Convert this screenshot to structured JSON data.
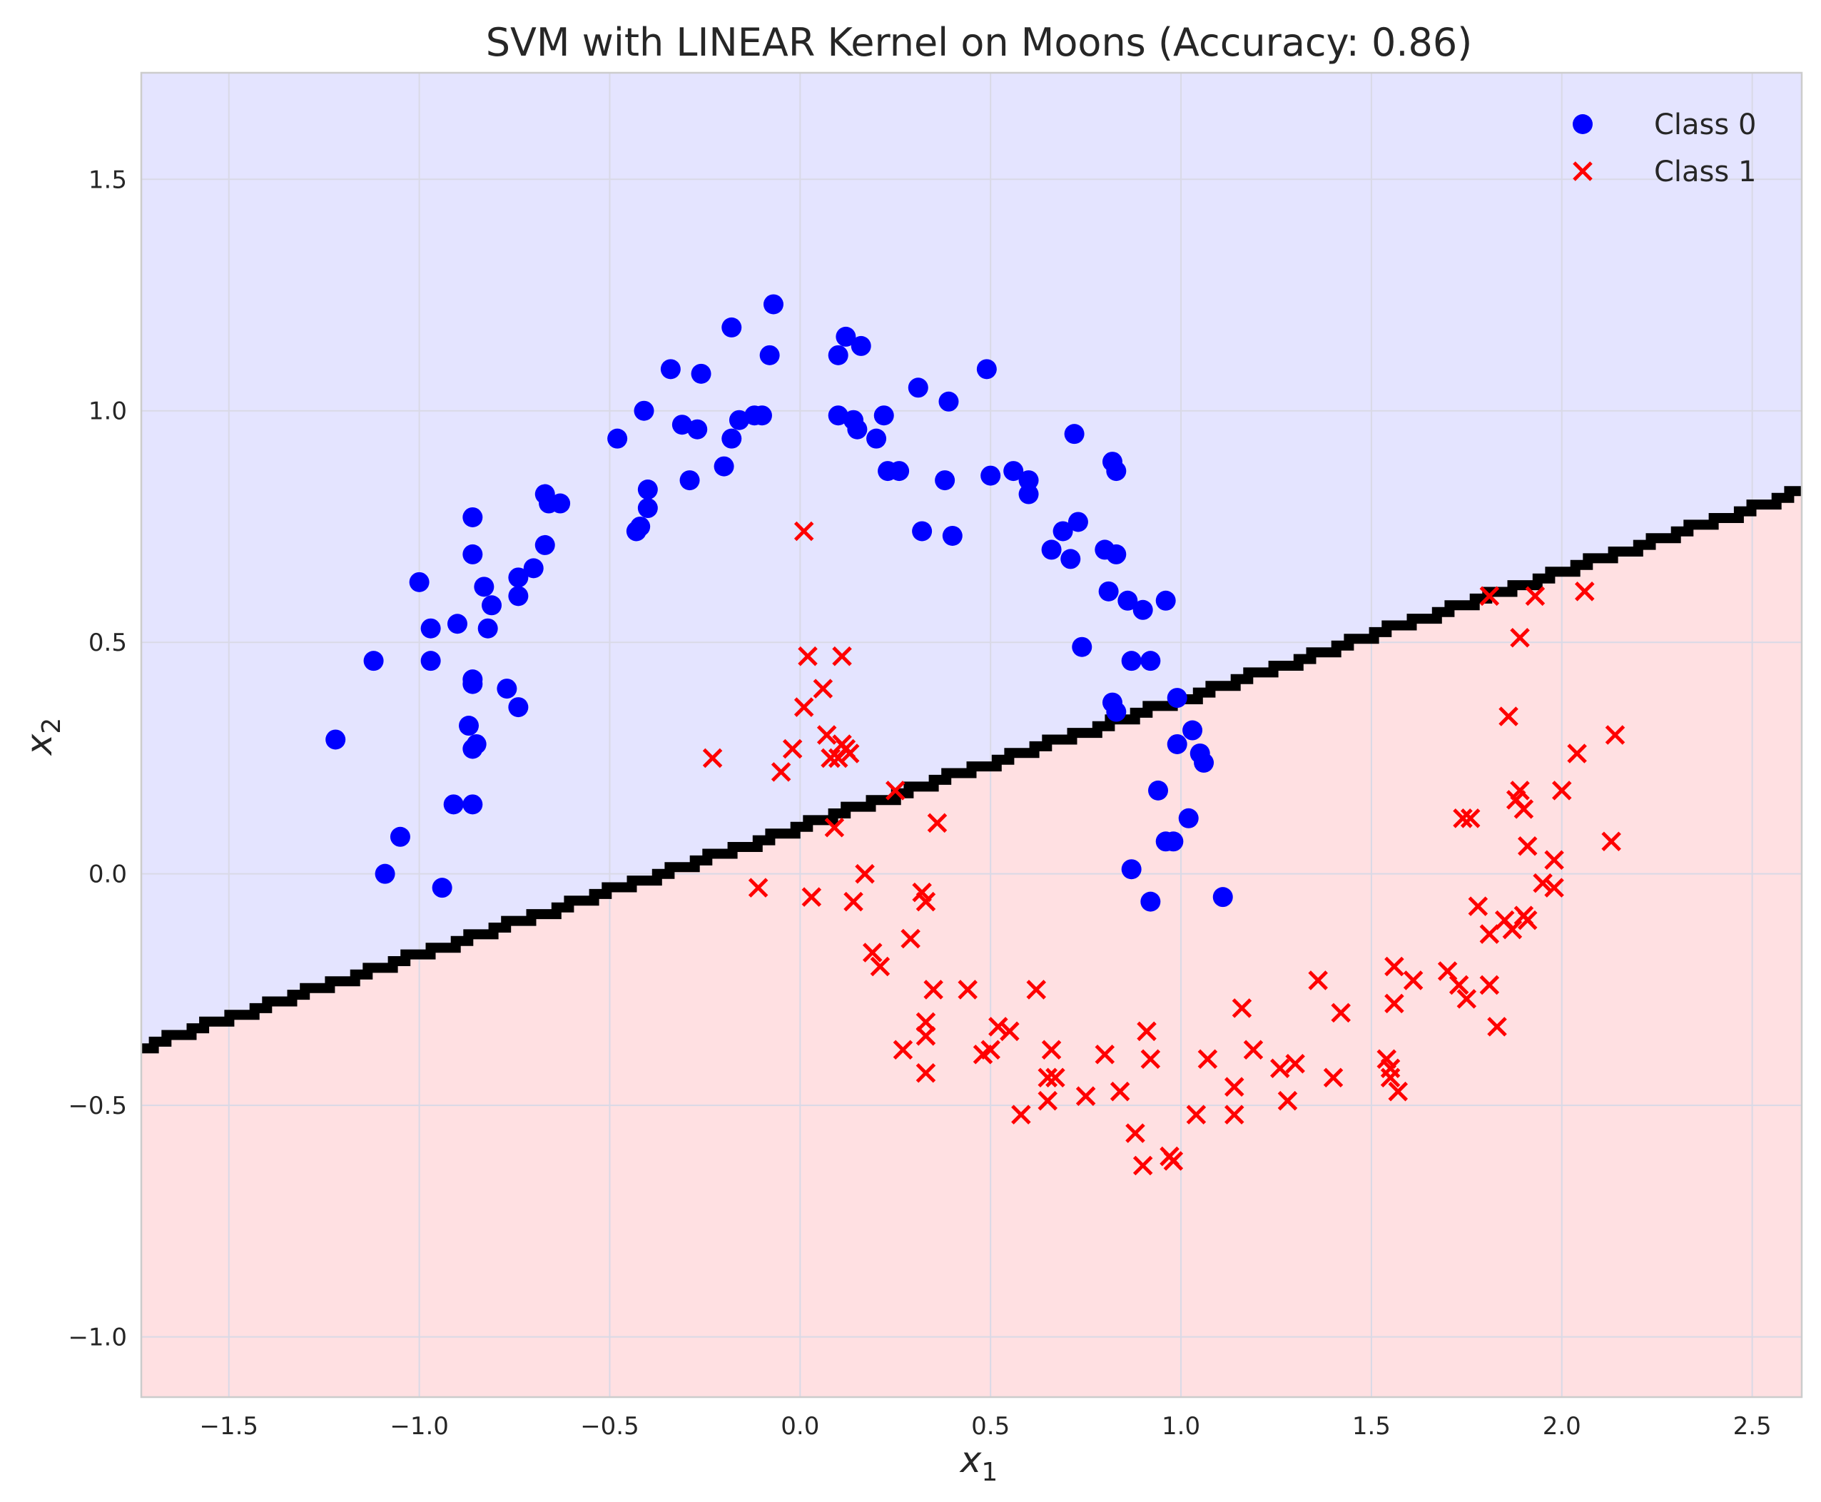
{
  "chart_data": {
    "type": "scatter",
    "title": "SVM with LINEAR Kernel on Moons (Accuracy: 0.86)",
    "xlabel_base": "x",
    "xlabel_sub": "1",
    "ylabel_base": "x",
    "ylabel_sub": "2",
    "xlim": [
      -1.73,
      2.63
    ],
    "ylim": [
      -1.13,
      1.73
    ],
    "x_ticks": [
      -1.5,
      -1.0,
      -0.5,
      0.0,
      0.5,
      1.0,
      1.5,
      2.0,
      2.5
    ],
    "x_tick_labels": [
      "−1.5",
      "−1.0",
      "−0.5",
      "0.0",
      "0.5",
      "1.0",
      "1.5",
      "2.0",
      "2.5"
    ],
    "y_ticks": [
      -1.0,
      -0.5,
      0.0,
      0.5,
      1.0,
      1.5
    ],
    "y_tick_labels": [
      "−1.0",
      "−0.5",
      "0.0",
      "0.5",
      "1.0",
      "1.5"
    ],
    "grid": true,
    "legend_position": "top-right",
    "decision_boundary": {
      "slope": 0.2755,
      "intercept": 0.105
    },
    "region_colors": {
      "class0": "#e4e4ff",
      "class1": "#ffe0e2"
    },
    "series": [
      {
        "name": "Class 0",
        "marker": "circle",
        "color": "#0000ff",
        "points": [
          [
            -1.22,
            0.29
          ],
          [
            -1.12,
            0.46
          ],
          [
            -1.09,
            0.0
          ],
          [
            -1.05,
            0.08
          ],
          [
            -1.0,
            0.63
          ],
          [
            -0.97,
            0.53
          ],
          [
            -0.97,
            0.46
          ],
          [
            -0.94,
            -0.03
          ],
          [
            -0.91,
            0.15
          ],
          [
            -0.9,
            0.54
          ],
          [
            -0.87,
            0.32
          ],
          [
            -0.86,
            0.27
          ],
          [
            -0.86,
            0.41
          ],
          [
            -0.86,
            0.42
          ],
          [
            -0.86,
            0.69
          ],
          [
            -0.86,
            0.77
          ],
          [
            -0.85,
            0.28
          ],
          [
            -0.86,
            0.15
          ],
          [
            -0.83,
            0.62
          ],
          [
            -0.82,
            0.53
          ],
          [
            -0.81,
            0.58
          ],
          [
            -0.77,
            0.4
          ],
          [
            -0.74,
            0.36
          ],
          [
            -0.74,
            0.64
          ],
          [
            -0.74,
            0.6
          ],
          [
            -0.7,
            0.66
          ],
          [
            -0.67,
            0.71
          ],
          [
            -0.67,
            0.82
          ],
          [
            -0.66,
            0.8
          ],
          [
            -0.63,
            0.8
          ],
          [
            -0.48,
            0.94
          ],
          [
            -0.43,
            0.74
          ],
          [
            -0.42,
            0.75
          ],
          [
            -0.41,
            1.0
          ],
          [
            -0.4,
            0.83
          ],
          [
            -0.4,
            0.79
          ],
          [
            -0.34,
            1.09
          ],
          [
            -0.31,
            0.97
          ],
          [
            -0.29,
            0.85
          ],
          [
            -0.27,
            0.96
          ],
          [
            -0.26,
            1.08
          ],
          [
            -0.2,
            0.88
          ],
          [
            -0.18,
            0.94
          ],
          [
            -0.18,
            1.18
          ],
          [
            -0.16,
            0.98
          ],
          [
            -0.12,
            0.99
          ],
          [
            -0.1,
            0.99
          ],
          [
            -0.08,
            1.12
          ],
          [
            -0.07,
            1.23
          ],
          [
            0.1,
            1.12
          ],
          [
            0.1,
            0.99
          ],
          [
            0.12,
            1.16
          ],
          [
            0.14,
            0.98
          ],
          [
            0.15,
            0.96
          ],
          [
            0.16,
            1.14
          ],
          [
            0.2,
            0.94
          ],
          [
            0.22,
            0.99
          ],
          [
            0.23,
            0.87
          ],
          [
            0.26,
            0.87
          ],
          [
            0.31,
            1.05
          ],
          [
            0.32,
            0.74
          ],
          [
            0.38,
            0.85
          ],
          [
            0.39,
            1.02
          ],
          [
            0.4,
            0.73
          ],
          [
            0.49,
            1.09
          ],
          [
            0.5,
            0.86
          ],
          [
            0.56,
            0.87
          ],
          [
            0.6,
            0.85
          ],
          [
            0.6,
            0.82
          ],
          [
            0.66,
            0.7
          ],
          [
            0.69,
            0.74
          ],
          [
            0.71,
            0.68
          ],
          [
            0.72,
            0.95
          ],
          [
            0.73,
            0.76
          ],
          [
            0.74,
            0.49
          ],
          [
            0.8,
            0.7
          ],
          [
            0.81,
            0.61
          ],
          [
            0.82,
            0.89
          ],
          [
            0.83,
            0.69
          ],
          [
            0.83,
            0.87
          ],
          [
            0.82,
            0.37
          ],
          [
            0.83,
            0.35
          ],
          [
            0.86,
            0.59
          ],
          [
            0.87,
            0.46
          ],
          [
            0.87,
            0.01
          ],
          [
            0.9,
            0.57
          ],
          [
            0.92,
            0.46
          ],
          [
            0.92,
            -0.06
          ],
          [
            0.94,
            0.18
          ],
          [
            0.96,
            0.59
          ],
          [
            0.96,
            0.07
          ],
          [
            0.98,
            0.07
          ],
          [
            0.99,
            0.38
          ],
          [
            0.99,
            0.28
          ],
          [
            1.02,
            0.12
          ],
          [
            1.03,
            0.31
          ],
          [
            1.05,
            0.26
          ],
          [
            1.06,
            0.24
          ],
          [
            1.11,
            -0.05
          ]
        ]
      },
      {
        "name": "Class 1",
        "marker": "x",
        "color": "#ff0000",
        "points": [
          [
            0.01,
            0.74
          ],
          [
            0.02,
            0.47
          ],
          [
            0.11,
            0.47
          ],
          [
            0.06,
            0.4
          ],
          [
            0.01,
            0.36
          ],
          [
            0.07,
            0.3
          ],
          [
            -0.02,
            0.27
          ],
          [
            0.08,
            0.25
          ],
          [
            0.1,
            0.25
          ],
          [
            0.11,
            0.28
          ],
          [
            0.12,
            0.27
          ],
          [
            0.13,
            0.26
          ],
          [
            -0.23,
            0.25
          ],
          [
            -0.05,
            0.22
          ],
          [
            0.25,
            0.18
          ],
          [
            0.09,
            0.1
          ],
          [
            0.36,
            0.11
          ],
          [
            0.17,
            0.0
          ],
          [
            -0.11,
            -0.03
          ],
          [
            0.03,
            -0.05
          ],
          [
            0.14,
            -0.06
          ],
          [
            0.32,
            -0.04
          ],
          [
            0.33,
            -0.06
          ],
          [
            0.19,
            -0.17
          ],
          [
            0.21,
            -0.2
          ],
          [
            0.29,
            -0.14
          ],
          [
            0.35,
            -0.25
          ],
          [
            0.44,
            -0.25
          ],
          [
            0.62,
            -0.25
          ],
          [
            0.33,
            -0.32
          ],
          [
            0.33,
            -0.35
          ],
          [
            0.27,
            -0.38
          ],
          [
            0.33,
            -0.43
          ],
          [
            0.48,
            -0.39
          ],
          [
            0.5,
            -0.38
          ],
          [
            0.52,
            -0.33
          ],
          [
            0.55,
            -0.34
          ],
          [
            0.58,
            -0.52
          ],
          [
            0.66,
            -0.38
          ],
          [
            0.65,
            -0.44
          ],
          [
            0.67,
            -0.44
          ],
          [
            0.65,
            -0.49
          ],
          [
            0.75,
            -0.48
          ],
          [
            0.8,
            -0.39
          ],
          [
            0.84,
            -0.47
          ],
          [
            0.88,
            -0.56
          ],
          [
            0.9,
            -0.63
          ],
          [
            0.91,
            -0.34
          ],
          [
            0.92,
            -0.4
          ],
          [
            0.97,
            -0.61
          ],
          [
            0.98,
            -0.62
          ],
          [
            1.04,
            -0.52
          ],
          [
            1.07,
            -0.4
          ],
          [
            1.14,
            -0.46
          ],
          [
            1.14,
            -0.52
          ],
          [
            1.16,
            -0.29
          ],
          [
            1.19,
            -0.38
          ],
          [
            1.26,
            -0.42
          ],
          [
            1.28,
            -0.49
          ],
          [
            1.3,
            -0.41
          ],
          [
            1.36,
            -0.23
          ],
          [
            1.4,
            -0.44
          ],
          [
            1.42,
            -0.3
          ],
          [
            1.54,
            -0.4
          ],
          [
            1.55,
            -0.42
          ],
          [
            1.55,
            -0.44
          ],
          [
            1.56,
            -0.2
          ],
          [
            1.56,
            -0.28
          ],
          [
            1.57,
            -0.47
          ],
          [
            1.61,
            -0.23
          ],
          [
            1.7,
            -0.21
          ],
          [
            1.73,
            -0.24
          ],
          [
            1.75,
            -0.27
          ],
          [
            1.74,
            0.12
          ],
          [
            1.76,
            0.12
          ],
          [
            1.78,
            -0.07
          ],
          [
            1.81,
            0.6
          ],
          [
            1.81,
            -0.13
          ],
          [
            1.81,
            -0.24
          ],
          [
            1.83,
            -0.33
          ],
          [
            1.85,
            -0.1
          ],
          [
            1.86,
            0.34
          ],
          [
            1.87,
            -0.12
          ],
          [
            1.88,
            0.16
          ],
          [
            1.89,
            0.18
          ],
          [
            1.89,
            0.51
          ],
          [
            1.9,
            0.14
          ],
          [
            1.9,
            -0.09
          ],
          [
            1.91,
            0.06
          ],
          [
            1.91,
            -0.1
          ],
          [
            1.93,
            0.6
          ],
          [
            1.95,
            -0.02
          ],
          [
            1.98,
            0.03
          ],
          [
            1.98,
            -0.03
          ],
          [
            2.0,
            0.18
          ],
          [
            2.04,
            0.26
          ],
          [
            2.06,
            0.61
          ],
          [
            2.13,
            0.07
          ],
          [
            2.14,
            0.3
          ]
        ]
      }
    ]
  }
}
